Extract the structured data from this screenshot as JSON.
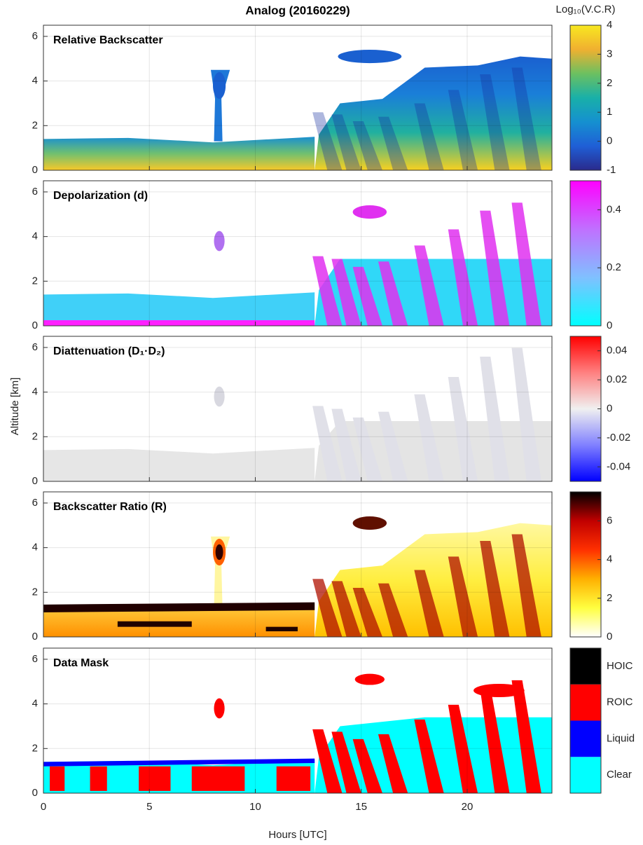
{
  "title": "Analog (20160229)",
  "xlabel": "Hours [UTC]",
  "ylabel": "Altitude [km]",
  "chart_data": [
    {
      "type": "heatmap",
      "title": "Relative Backscatter",
      "xlim": [
        0,
        24
      ],
      "xticks": [
        0,
        5,
        10,
        15,
        20
      ],
      "ylim": [
        0,
        6.5
      ],
      "yticks": [
        0,
        2,
        4,
        6
      ],
      "grid": true,
      "colorbar": {
        "label": "Log₁₀(V.C.R)",
        "clim": [
          -1,
          4
        ],
        "ticks": [
          -1,
          0,
          1,
          2,
          3,
          4
        ],
        "colors": [
          "#2a2a8c",
          "#1f5fd6",
          "#1590d0",
          "#19b0a8",
          "#6cc060",
          "#f0b030",
          "#f8e820"
        ]
      }
    },
    {
      "type": "heatmap",
      "title": "Depolarization (d)",
      "xlim": [
        0,
        24
      ],
      "xticks": [
        0,
        5,
        10,
        15,
        20
      ],
      "ylim": [
        0,
        6.5
      ],
      "yticks": [
        0,
        2,
        4,
        6
      ],
      "grid": true,
      "colorbar": {
        "clim": [
          0,
          0.5
        ],
        "ticks": [
          0,
          0.2,
          0.4
        ],
        "colors": [
          "#00ffff",
          "#80c0ff",
          "#c070ff",
          "#ff00ff"
        ]
      }
    },
    {
      "type": "heatmap",
      "title": "Diattenuation (D₁·D₂)",
      "xlim": [
        0,
        24
      ],
      "xticks": [
        0,
        5,
        10,
        15,
        20
      ],
      "ylim": [
        0,
        6.5
      ],
      "yticks": [
        0,
        2,
        4,
        6
      ],
      "grid": true,
      "colorbar": {
        "clim": [
          -0.05,
          0.05
        ],
        "ticks": [
          -0.04,
          -0.02,
          0,
          0.02,
          0.04
        ],
        "colors": [
          "#0000ff",
          "#8080ff",
          "#f0f0f0",
          "#ff8080",
          "#ff0000"
        ]
      }
    },
    {
      "type": "heatmap",
      "title": "Backscatter Ratio (R)",
      "xlim": [
        0,
        24
      ],
      "xticks": [
        0,
        5,
        10,
        15,
        20
      ],
      "ylim": [
        0,
        6.5
      ],
      "yticks": [
        0,
        2,
        4,
        6
      ],
      "grid": true,
      "colorbar": {
        "clim": [
          0,
          7.5
        ],
        "ticks": [
          0,
          2,
          4,
          6
        ],
        "colors": [
          "#ffffff",
          "#ffff40",
          "#ffb000",
          "#ff3000",
          "#c00000",
          "#000000"
        ]
      }
    },
    {
      "type": "mask",
      "title": "Data Mask",
      "xlim": [
        0,
        24
      ],
      "xticks": [
        0,
        5,
        10,
        15,
        20
      ],
      "ylim": [
        0,
        6.5
      ],
      "yticks": [
        0,
        2,
        4,
        6
      ],
      "grid": true,
      "classes": [
        {
          "name": "Clear",
          "color": "#00ffff"
        },
        {
          "name": "Liquid",
          "color": "#0000ff"
        },
        {
          "name": "ROIC",
          "color": "#ff0000"
        },
        {
          "name": "HOIC",
          "color": "#000000"
        }
      ]
    }
  ]
}
